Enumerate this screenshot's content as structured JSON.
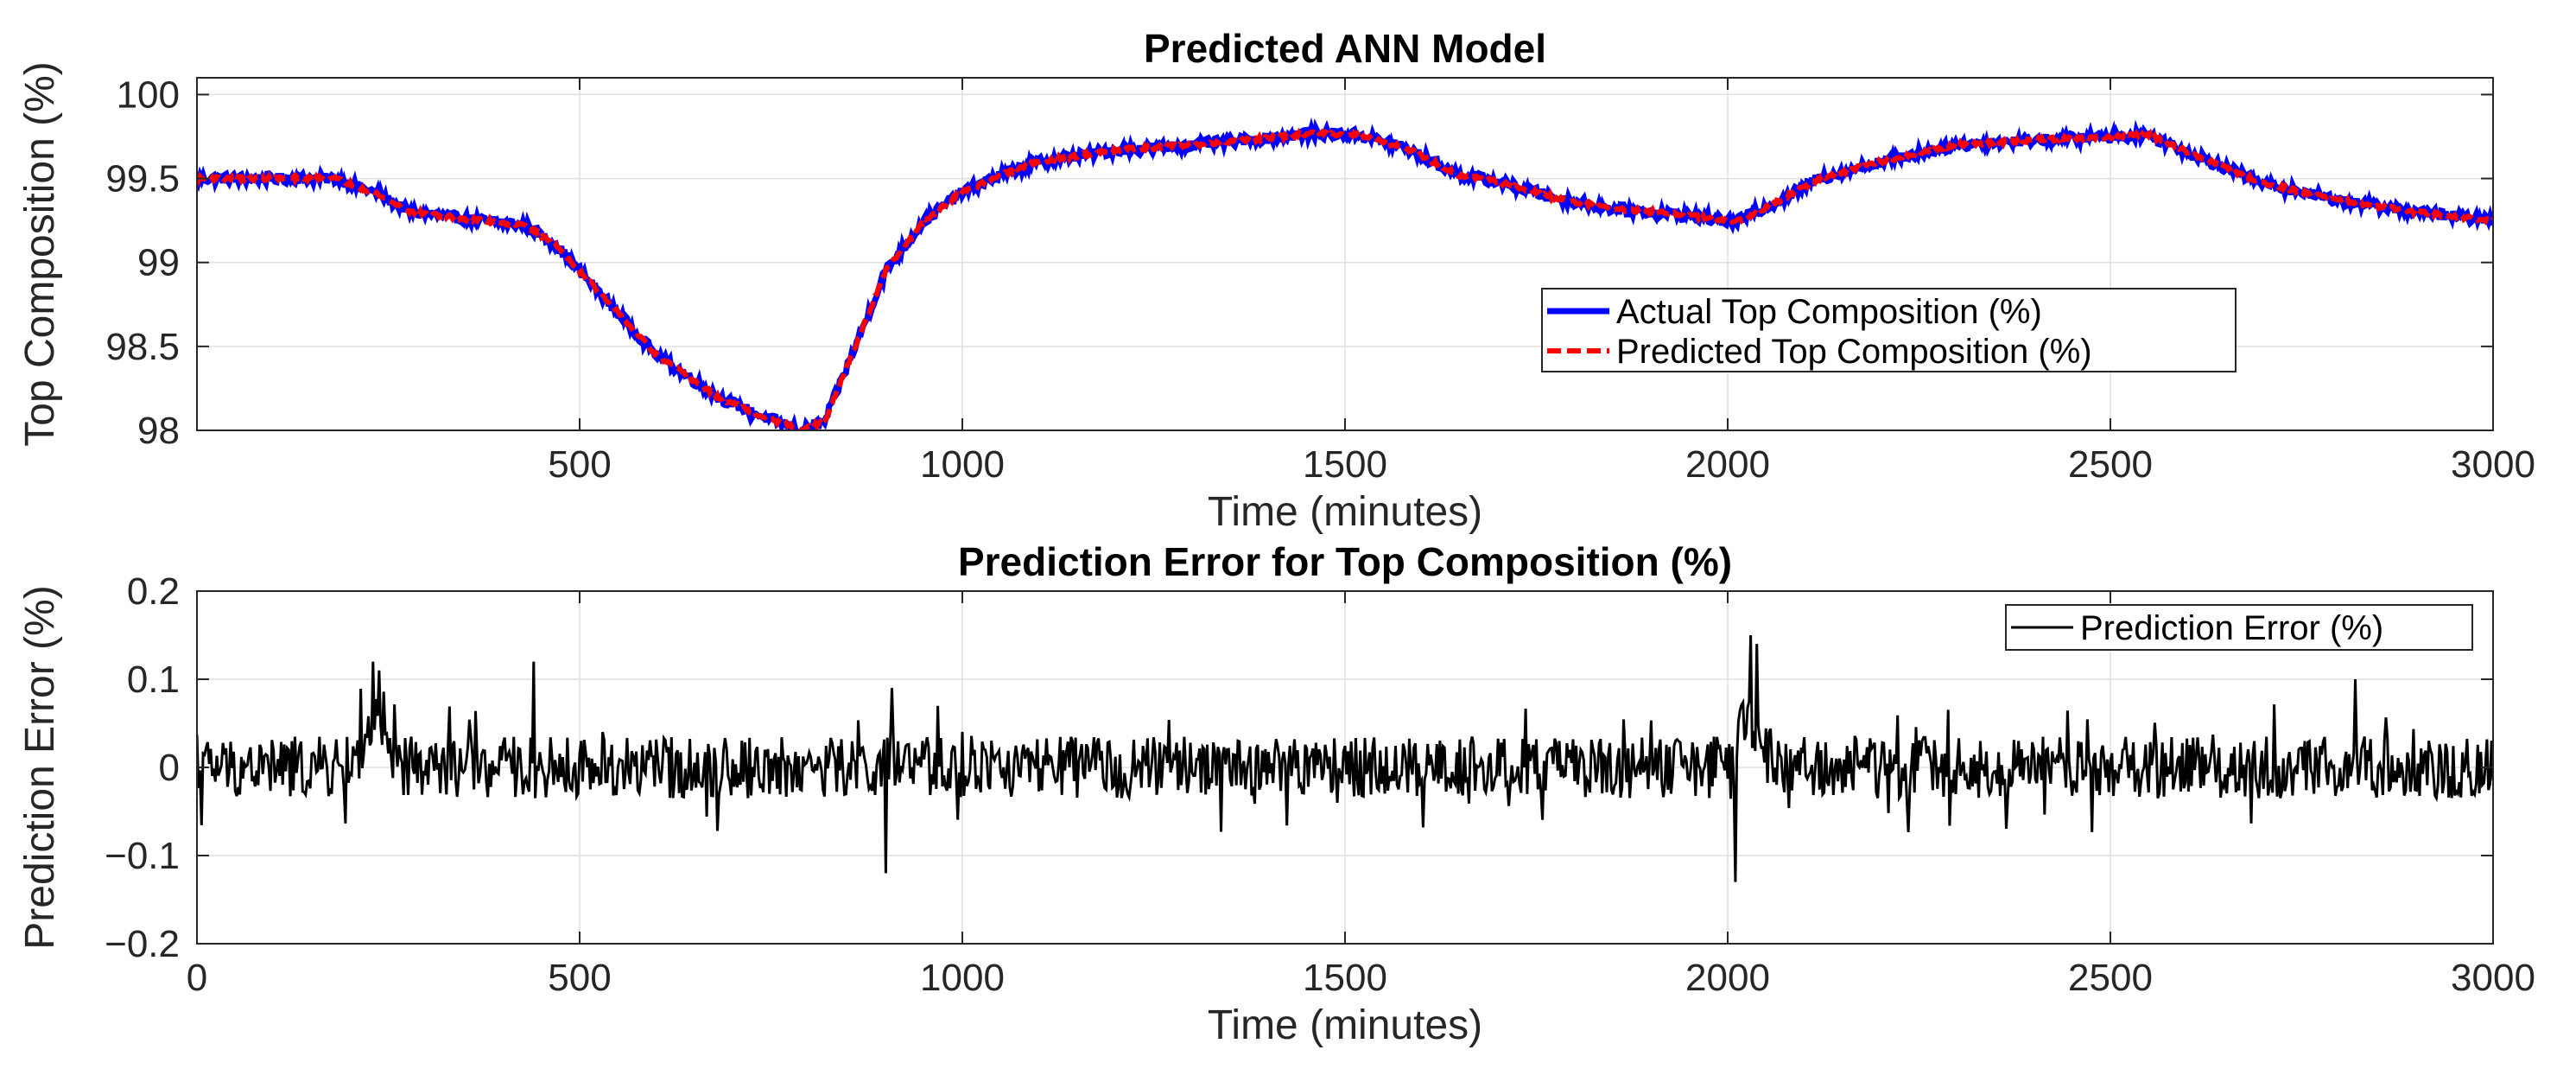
{
  "chart_data": [
    {
      "type": "line",
      "title": "Predicted ANN Model",
      "xlabel": "Time (minutes)",
      "ylabel": "Top Composition (%)",
      "xlim": [
        0,
        3000
      ],
      "ylim": [
        98,
        100.1
      ],
      "xticks": [
        500,
        1000,
        1500,
        2000,
        2500,
        3000
      ],
      "xtick_labels": [
        "500",
        "1000",
        "1500",
        "2000",
        "2500",
        "3000"
      ],
      "yticks": [
        98,
        98.5,
        99,
        99.5,
        100
      ],
      "ytick_labels": [
        "98",
        "98.5",
        "99",
        "99.5",
        "100"
      ],
      "grid": true,
      "legend_position": "middle-right",
      "series": [
        {
          "name": "Actual Top Composition (%)",
          "color": "#0000ff",
          "style": "solid",
          "noise": 0.03,
          "x": [
            0,
            100,
            180,
            230,
            280,
            350,
            430,
            470,
            520,
            600,
            680,
            740,
            790,
            820,
            860,
            900,
            950,
            1000,
            1050,
            1100,
            1200,
            1300,
            1400,
            1460,
            1520,
            1580,
            1650,
            1700,
            1780,
            1850,
            1950,
            2010,
            2060,
            2120,
            2200,
            2300,
            2400,
            2500,
            2550,
            2600,
            2700,
            2800,
            2900,
            3000
          ],
          "y": [
            99.5,
            99.5,
            99.5,
            99.42,
            99.3,
            99.26,
            99.22,
            99.1,
            98.85,
            98.45,
            98.2,
            98.08,
            98.0,
            98.05,
            98.5,
            98.95,
            99.25,
            99.42,
            99.52,
            99.6,
            99.67,
            99.7,
            99.74,
            99.77,
            99.76,
            99.68,
            99.52,
            99.48,
            99.38,
            99.32,
            99.28,
            99.24,
            99.35,
            99.5,
            99.6,
            99.7,
            99.73,
            99.75,
            99.76,
            99.66,
            99.47,
            99.37,
            99.3,
            99.25
          ]
        },
        {
          "name": "Predicted Top Composition (%)",
          "color": "#ff0000",
          "style": "dashed",
          "noise": 0.012,
          "x": [
            0,
            100,
            180,
            230,
            280,
            350,
            430,
            470,
            520,
            600,
            680,
            740,
            790,
            820,
            860,
            900,
            950,
            1000,
            1050,
            1100,
            1200,
            1300,
            1400,
            1460,
            1520,
            1580,
            1650,
            1700,
            1780,
            1850,
            1950,
            2010,
            2060,
            2120,
            2200,
            2300,
            2400,
            2500,
            2550,
            2600,
            2700,
            2800,
            2900,
            3000
          ],
          "y": [
            99.5,
            99.5,
            99.5,
            99.42,
            99.3,
            99.26,
            99.22,
            99.1,
            98.85,
            98.45,
            98.2,
            98.08,
            98.0,
            98.05,
            98.5,
            98.95,
            99.25,
            99.42,
            99.52,
            99.6,
            99.67,
            99.7,
            99.74,
            99.77,
            99.76,
            99.68,
            99.52,
            99.48,
            99.38,
            99.32,
            99.28,
            99.24,
            99.35,
            99.5,
            99.6,
            99.7,
            99.73,
            99.75,
            99.76,
            99.66,
            99.47,
            99.37,
            99.3,
            99.25
          ]
        }
      ]
    },
    {
      "type": "line",
      "title": "Prediction Error for Top Composition (%)",
      "xlabel": "Time (minutes)",
      "ylabel": "Prediction Error (%)",
      "xlim": [
        0,
        3000
      ],
      "ylim": [
        -0.2,
        0.2
      ],
      "xticks": [
        0,
        500,
        1000,
        1500,
        2000,
        2500,
        3000
      ],
      "xtick_labels": [
        "0",
        "500",
        "1000",
        "1500",
        "2000",
        "2500",
        "3000"
      ],
      "yticks": [
        -0.2,
        -0.1,
        0,
        0.1,
        0.2
      ],
      "ytick_labels": [
        "−0.2",
        "−0.1",
        "0",
        "0.1",
        "0.2"
      ],
      "grid": true,
      "legend_position": "top-right",
      "series": [
        {
          "name": "Prediction Error (%)",
          "color": "#000000",
          "style": "solid",
          "amplitude": 0.035,
          "bursts": [
            {
              "t": 230,
              "offset": 0.05,
              "spikes": [
                0.12,
                0.11
              ]
            },
            {
              "t": 440,
              "spikes": [
                0.12
              ]
            },
            {
              "t": 900,
              "spikes": [
                -0.12,
                0.09
              ]
            },
            {
              "t": 2010,
              "spikes": [
                -0.13
              ]
            },
            {
              "t": 2030,
              "offset": 0.06,
              "spikes": [
                0.15,
                0.14
              ]
            },
            {
              "t": 2820,
              "spikes": [
                0.1
              ]
            }
          ],
          "annotated_extremes": {
            "max": 0.15,
            "min": -0.13
          }
        }
      ]
    }
  ]
}
